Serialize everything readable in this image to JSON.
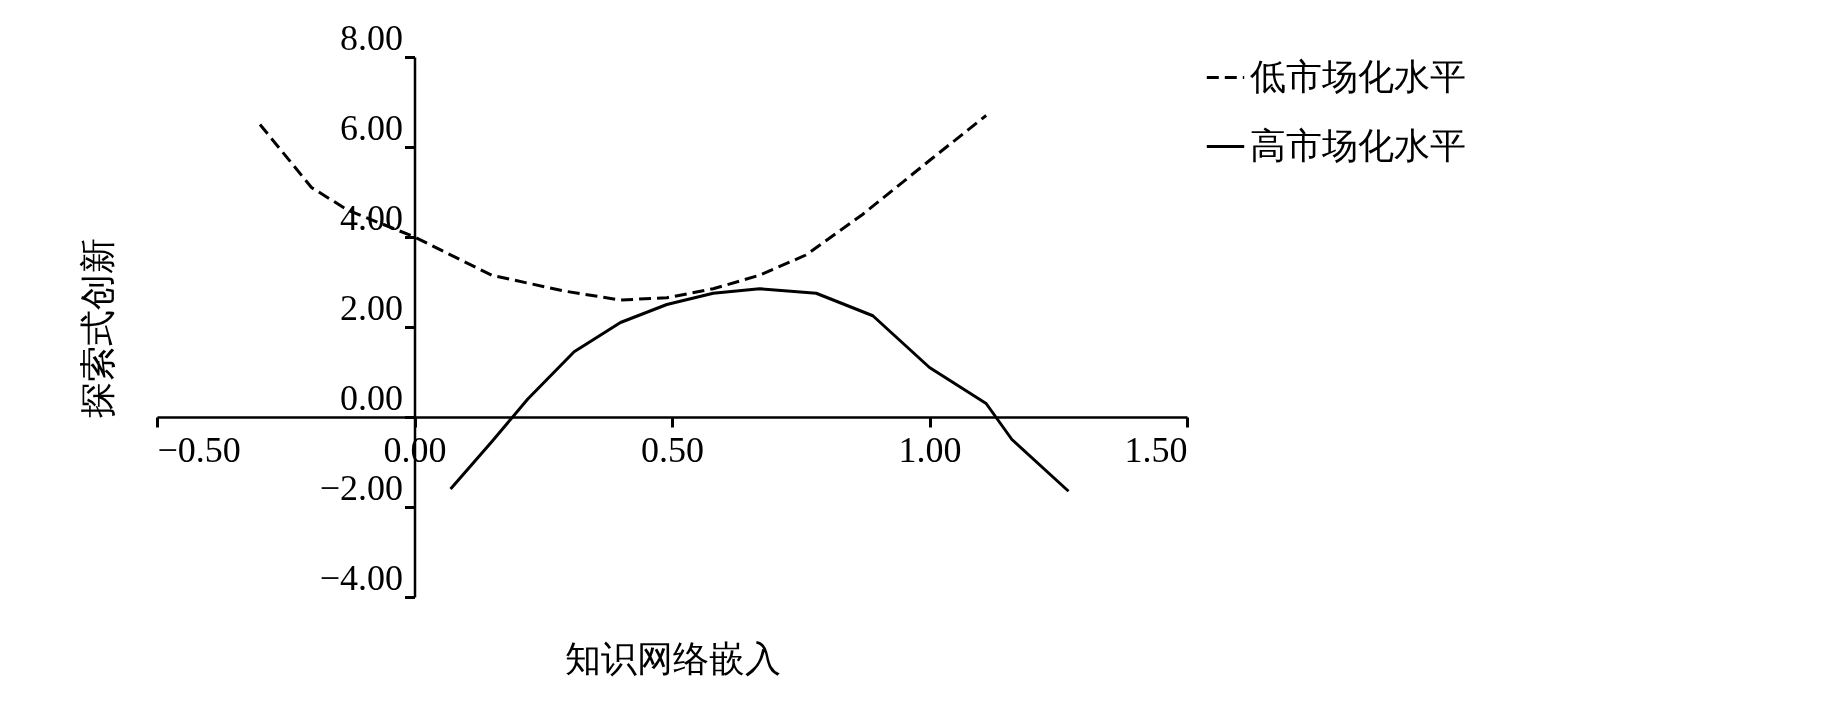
{
  "chart_data": {
    "type": "line",
    "xlabel": "知识网络嵌入",
    "ylabel": "探索式创新",
    "xlim": [
      -0.5,
      1.5
    ],
    "ylim": [
      -4,
      8
    ],
    "xticks": [
      {
        "value": -0.5,
        "label": "−0.50"
      },
      {
        "value": 0,
        "label": "0.00"
      },
      {
        "value": 0.5,
        "label": "0.50"
      },
      {
        "value": 1,
        "label": "1.00"
      },
      {
        "value": 1.5,
        "label": "1.50"
      }
    ],
    "yticks": [
      {
        "value": -4,
        "label": "−4.00"
      },
      {
        "value": -2,
        "label": "−2.00"
      },
      {
        "value": 0,
        "label": "0.00"
      },
      {
        "value": 2,
        "label": "2.00"
      },
      {
        "value": 4,
        "label": "4.00"
      },
      {
        "value": 6,
        "label": "6.00"
      },
      {
        "value": 8,
        "label": "8.00"
      }
    ],
    "grid": false,
    "legend": "right",
    "marker": "none",
    "series": [
      {
        "name": "低市场化水平",
        "color": "#000000",
        "line_style": "dashed",
        "x": [
          -0.3,
          -0.2,
          -0.13,
          0,
          0.15,
          0.29,
          0.4,
          0.49,
          0.58,
          0.67,
          0.76,
          0.87,
          1.0,
          1.11
        ],
        "values": [
          6.5,
          5.1,
          4.6,
          4.0,
          3.15,
          2.8,
          2.6,
          2.65,
          2.85,
          3.15,
          3.6,
          4.5,
          5.7,
          6.7
        ]
      },
      {
        "name": "高市场化水平",
        "color": "#000000",
        "line_style": "solid",
        "x": [
          0.07,
          0.15,
          0.22,
          0.31,
          0.4,
          0.49,
          0.58,
          0.67,
          0.78,
          0.89,
          1.0,
          1.11,
          1.16,
          1.27
        ],
        "values": [
          -1.6,
          -0.55,
          0.4,
          1.45,
          2.1,
          2.5,
          2.75,
          2.85,
          2.75,
          2.25,
          1.1,
          0.3,
          -0.5,
          -1.65
        ]
      }
    ]
  }
}
